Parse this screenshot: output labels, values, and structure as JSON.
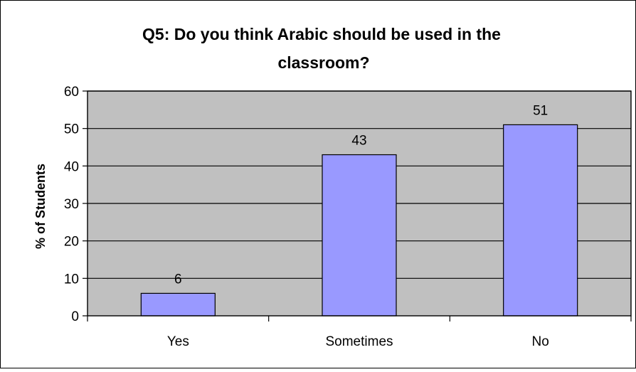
{
  "chart_data": {
    "type": "bar",
    "title_lines": [
      "Q5: Do you think Arabic should be used in the",
      "classroom?"
    ],
    "categories": [
      "Yes",
      "Sometimes",
      "No"
    ],
    "values": [
      6,
      43,
      51
    ],
    "data_labels": [
      "6",
      "43",
      "51"
    ],
    "xlabel": "",
    "ylabel": "% of Students",
    "ylim": [
      0,
      60
    ],
    "yticks": [
      "0",
      "10",
      "20",
      "30",
      "40",
      "50",
      "60"
    ],
    "grid": true,
    "legend": "none",
    "colors": {
      "plot_background": "#c0c0c0",
      "bar_fill": "#9999ff",
      "bar_stroke": "#000000",
      "gridline": "#000000",
      "frame": "#000000"
    }
  }
}
